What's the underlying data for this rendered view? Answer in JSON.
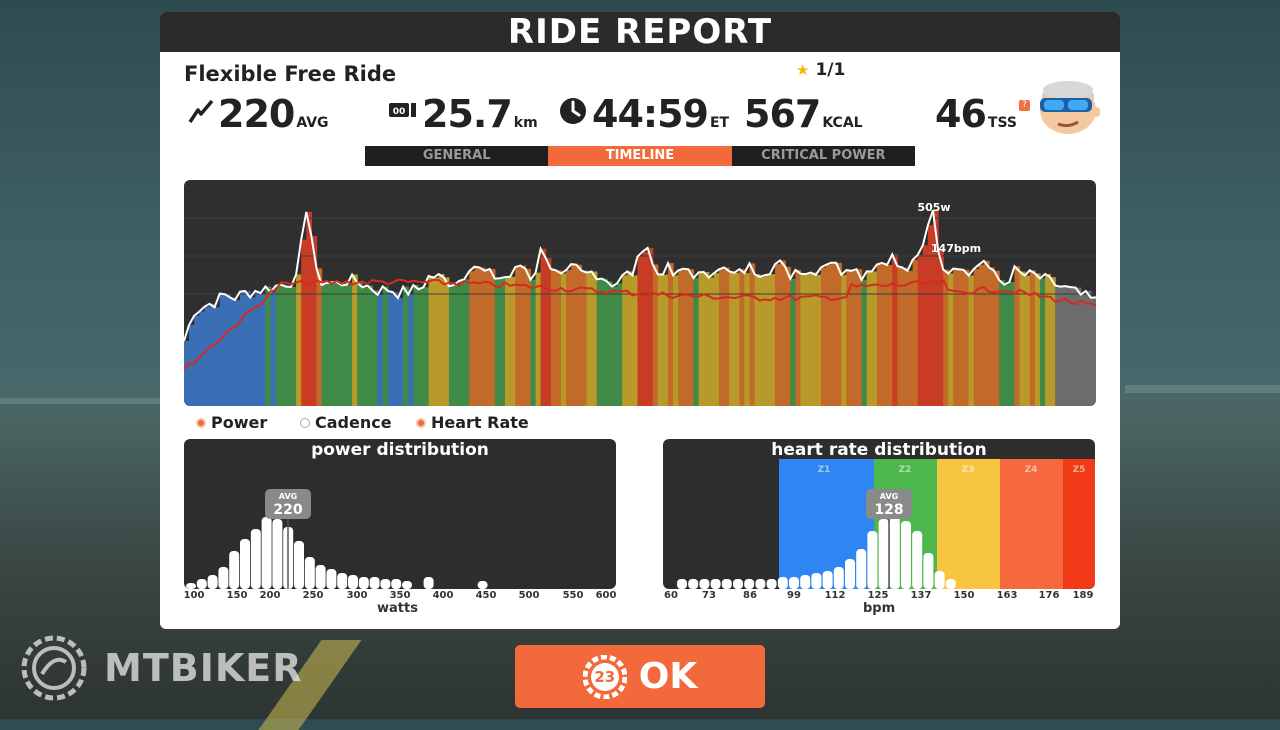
{
  "header": {
    "title": "RIDE REPORT"
  },
  "ride": {
    "name": "Flexible Free Ride",
    "rating": "1/1"
  },
  "stats": {
    "power": {
      "icon": "power-bolt-icon",
      "value": "220",
      "unit": "AVG"
    },
    "distance": {
      "icon": "odometer-icon",
      "value": "25.7",
      "unit": "km"
    },
    "time": {
      "icon": "clock-icon",
      "value": "44:59",
      "unit": "ET"
    },
    "calories": {
      "value": "567",
      "unit": "KCAL"
    },
    "tss": {
      "value": "46",
      "unit": "TSS",
      "badge": "?"
    }
  },
  "tabs": [
    {
      "label": "GENERAL",
      "active": false
    },
    {
      "label": "TIMELINE",
      "active": true
    },
    {
      "label": "CRITICAL POWER",
      "active": false
    }
  ],
  "timeline": {
    "peak_power_label": "505w",
    "peak_hr_label": "147bpm",
    "zone_colors": {
      "z1": "#3a6fb5",
      "z2": "#3f8a46",
      "z3": "#b89a2a",
      "z4": "#c26a2a",
      "z5": "#c83b25",
      "rest": "#6c6c6c"
    },
    "power_profile": [
      150,
      220,
      230,
      240,
      255,
      250,
      260,
      265,
      270,
      275,
      285,
      290,
      470,
      290,
      285,
      280,
      290,
      285,
      275,
      265,
      270,
      260,
      265,
      270,
      300,
      295,
      285,
      290,
      330,
      310,
      300,
      295,
      300,
      330,
      290,
      370,
      310,
      290,
      320,
      300,
      310,
      295,
      280,
      300,
      310,
      390,
      300,
      320,
      295,
      320,
      300,
      295,
      330,
      305,
      300,
      320,
      310,
      315,
      330,
      300,
      320,
      305,
      320,
      340,
      310,
      330,
      300,
      320,
      330,
      345,
      310,
      320,
      355,
      470,
      300,
      330,
      320,
      310,
      340,
      300,
      280,
      310,
      300,
      300,
      290,
      280,
      270,
      260,
      250,
      240
    ]
  },
  "legend": [
    {
      "label": "Power",
      "checked": true
    },
    {
      "label": "Cadence",
      "checked": false
    },
    {
      "label": "Heart Rate",
      "checked": true
    }
  ],
  "power_distribution": {
    "title": "power distribution",
    "avg_label": "AVG",
    "avg_value": "220",
    "axis_title": "watts",
    "tick_labels": [
      "100",
      "150",
      "200",
      "250",
      "300",
      "350",
      "400",
      "450",
      "500",
      "550",
      "600"
    ]
  },
  "hr_distribution": {
    "title": "heart rate distribution",
    "avg_label": "AVG",
    "avg_value": "128",
    "axis_title": "bpm",
    "tick_labels": [
      "60",
      "73",
      "86",
      "99",
      "112",
      "125",
      "137",
      "150",
      "163",
      "176",
      "189"
    ],
    "zones": [
      {
        "label": "Z1",
        "color": "#2f86f2"
      },
      {
        "label": "Z2",
        "color": "#4cb84c"
      },
      {
        "label": "Z3",
        "color": "#f7c540"
      },
      {
        "label": "Z4",
        "color": "#f6683e"
      },
      {
        "label": "Z5",
        "color": "#f13a17"
      }
    ]
  },
  "ok_button": {
    "timer": "23",
    "label": "OK"
  },
  "watermark": {
    "text": "MTBIKER"
  }
}
